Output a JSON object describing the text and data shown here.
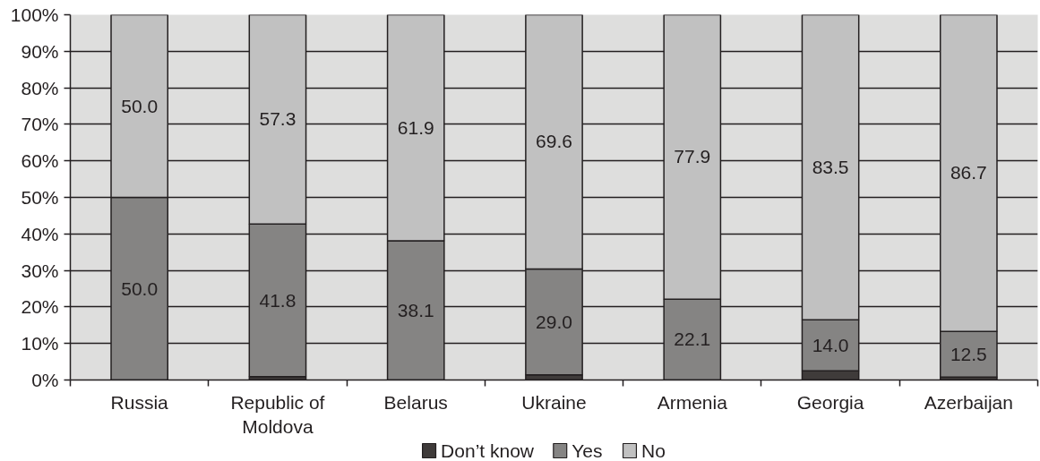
{
  "chart_data": {
    "type": "bar",
    "stacked": true,
    "categories": [
      "Russia",
      "Republic of Moldova",
      "Belarus",
      "Ukraine",
      "Armenia",
      "Georgia",
      "Azerbaijan"
    ],
    "series": [
      {
        "name": "Don’t know",
        "color": "#3f3b3a",
        "values": [
          0,
          0.9,
          0,
          1.4,
          0,
          2.5,
          0.8
        ]
      },
      {
        "name": "Yes",
        "color": "#858483",
        "values": [
          50.0,
          41.8,
          38.1,
          29.0,
          22.1,
          14.0,
          12.5
        ],
        "value_labels": [
          "50.0",
          "41.8",
          "38.1",
          "29.0",
          "22.1",
          "14.0",
          "12.5"
        ]
      },
      {
        "name": "No",
        "color": "#c1c1c1",
        "values": [
          50.0,
          57.3,
          61.9,
          69.6,
          77.9,
          83.5,
          86.7
        ],
        "value_labels": [
          "50.0",
          "57.3",
          "61.9",
          "69.6",
          "77.9",
          "83.5",
          "86.7"
        ]
      }
    ],
    "ylim": [
      0,
      100
    ],
    "yticks": [
      {
        "value": 0,
        "label": "0%"
      },
      {
        "value": 10,
        "label": "10%"
      },
      {
        "value": 20,
        "label": "20%"
      },
      {
        "value": 30,
        "label": "30%"
      },
      {
        "value": 40,
        "label": "40%"
      },
      {
        "value": 50,
        "label": "50%"
      },
      {
        "value": 60,
        "label": "60%"
      },
      {
        "value": 70,
        "label": "70%"
      },
      {
        "value": 80,
        "label": "80%"
      },
      {
        "value": 90,
        "label": "90%"
      },
      {
        "value": 100,
        "label": "100%"
      }
    ],
    "grid": "y",
    "legend": "bottom"
  }
}
